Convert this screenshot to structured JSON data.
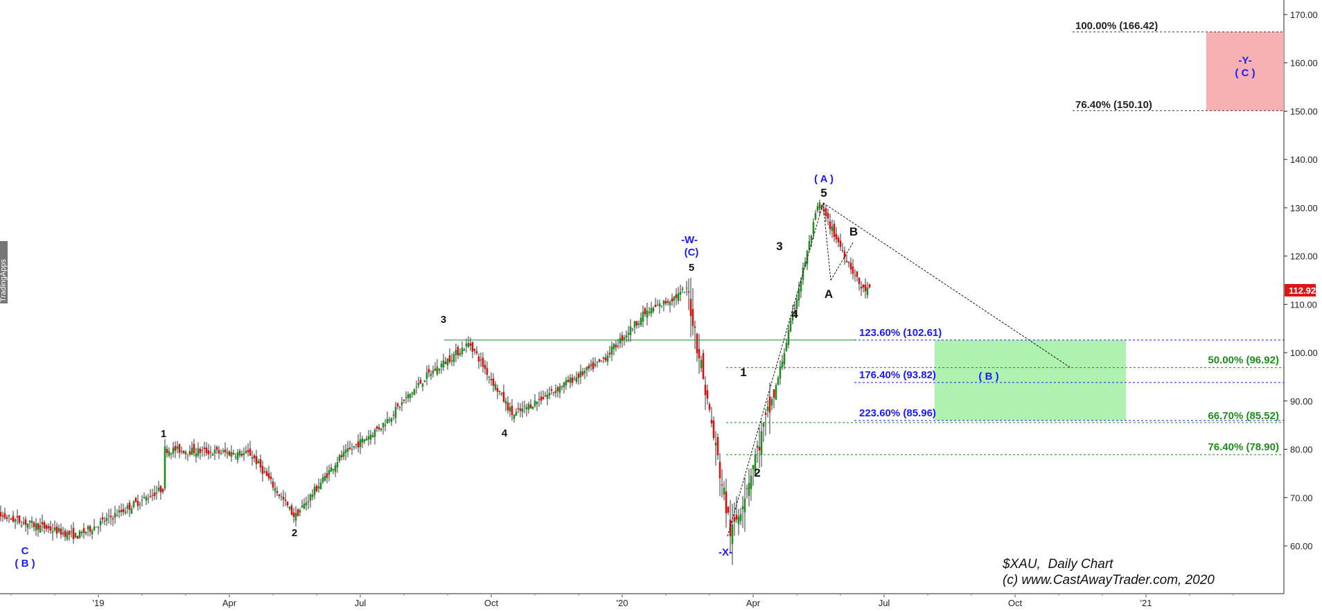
{
  "chart_data": {
    "type": "candlestick",
    "symbol": "$XAU",
    "interval": "Daily Chart",
    "copyright": "(c) www.CastAwayTrader.com, 2020",
    "side_badge": "TradingApps",
    "last_price": "112.92",
    "y_axis": {
      "range": [
        52,
        175
      ],
      "ticks": [
        "60.00",
        "70.00",
        "80.00",
        "90.00",
        "100.00",
        "110.00",
        "120.00",
        "130.00",
        "140.00",
        "150.00",
        "160.00",
        "170.00"
      ]
    },
    "x_axis": {
      "ticks": [
        "'19",
        "Apr",
        "Jul",
        "Oct",
        "'20",
        "Apr",
        "Jul",
        "Oct",
        "'21"
      ]
    },
    "price_path": [
      {
        "date": "Nov 2018",
        "close": 68
      },
      {
        "date": "Dec 2018",
        "close": 62
      },
      {
        "date": "Feb 2019",
        "close": 72
      },
      {
        "date": "Feb 2019",
        "close": 80
      },
      {
        "date": "Apr 2019",
        "close": 79
      },
      {
        "date": "May 2019",
        "close": 66
      },
      {
        "date": "Jun 2019",
        "close": 78
      },
      {
        "date": "Jul 2019",
        "close": 85
      },
      {
        "date": "Aug 2019",
        "close": 95
      },
      {
        "date": "Sep 2019",
        "close": 102
      },
      {
        "date": "Oct 2019",
        "close": 87
      },
      {
        "date": "Dec 2019",
        "close": 98
      },
      {
        "date": "Jan 2020",
        "close": 108
      },
      {
        "date": "Feb 2020",
        "close": 113
      },
      {
        "date": "Mar 2020",
        "close": 62
      },
      {
        "date": "Apr 2020",
        "close": 92
      },
      {
        "date": "May 2020",
        "close": 131
      },
      {
        "date": "Jun 2020",
        "close": 113
      }
    ],
    "horizontal_lines": [
      {
        "label": "100.00% (166.42)",
        "value": 166.42,
        "color": "#333333"
      },
      {
        "label": "76.40% (150.10)",
        "value": 150.1,
        "color": "#333333"
      },
      {
        "label": "123.60% (102.61)",
        "value": 102.61,
        "color": "#1a1aff"
      },
      {
        "label": "50.00% (96.92)",
        "value": 96.92,
        "color": "#1f8a1f"
      },
      {
        "label": "176.40% (93.82)",
        "value": 93.82,
        "color": "#1a1aff"
      },
      {
        "label": "223.60% (85.96)",
        "value": 85.96,
        "color": "#1a1aff"
      },
      {
        "label": "66.70% (85.52)",
        "value": 85.52,
        "color": "#1f8a1f"
      },
      {
        "label": "76.40% (78.90)",
        "value": 78.9,
        "color": "#1f8a1f"
      }
    ],
    "target_zones": [
      {
        "label_top": "-Y-",
        "label_bottom": "( C )",
        "from": 150.1,
        "to": 166.42,
        "color": "#f7a8ab"
      },
      {
        "label_top": "",
        "label_bottom": "( B )",
        "from": 85.96,
        "to": 102.61,
        "color": "#a6f0a6"
      }
    ],
    "wave_labels": [
      {
        "text": "C",
        "date": "Dec 2018"
      },
      {
        "text": "( B )",
        "date": "Dec 2018"
      },
      {
        "text": "1",
        "date": "Feb 2019"
      },
      {
        "text": "2",
        "date": "May 2019"
      },
      {
        "text": "3",
        "date": "Sep 2019"
      },
      {
        "text": "4",
        "date": "Oct 2019"
      },
      {
        "text": "5",
        "date": "Feb 2020"
      },
      {
        "text": "-W-",
        "date": "Feb 2020"
      },
      {
        "text": "(C)",
        "date": "Feb 2020"
      },
      {
        "text": "-X-",
        "date": "Mar 2020"
      },
      {
        "text": "1",
        "date": "Mar 2020"
      },
      {
        "text": "2",
        "date": "Apr 2020"
      },
      {
        "text": "3",
        "date": "Apr 2020"
      },
      {
        "text": "4",
        "date": "Apr 2020"
      },
      {
        "text": "5",
        "date": "May 2020"
      },
      {
        "text": "( A )",
        "date": "May 2020"
      },
      {
        "text": "A",
        "date": "May 2020"
      },
      {
        "text": "B",
        "date": "Jun 2020"
      }
    ],
    "colors": {
      "up": "#1e8c1e",
      "down": "#d41010",
      "blue_label": "#1a1aff",
      "green_label": "#1f8a1f",
      "price_badge": "#e01414"
    }
  }
}
